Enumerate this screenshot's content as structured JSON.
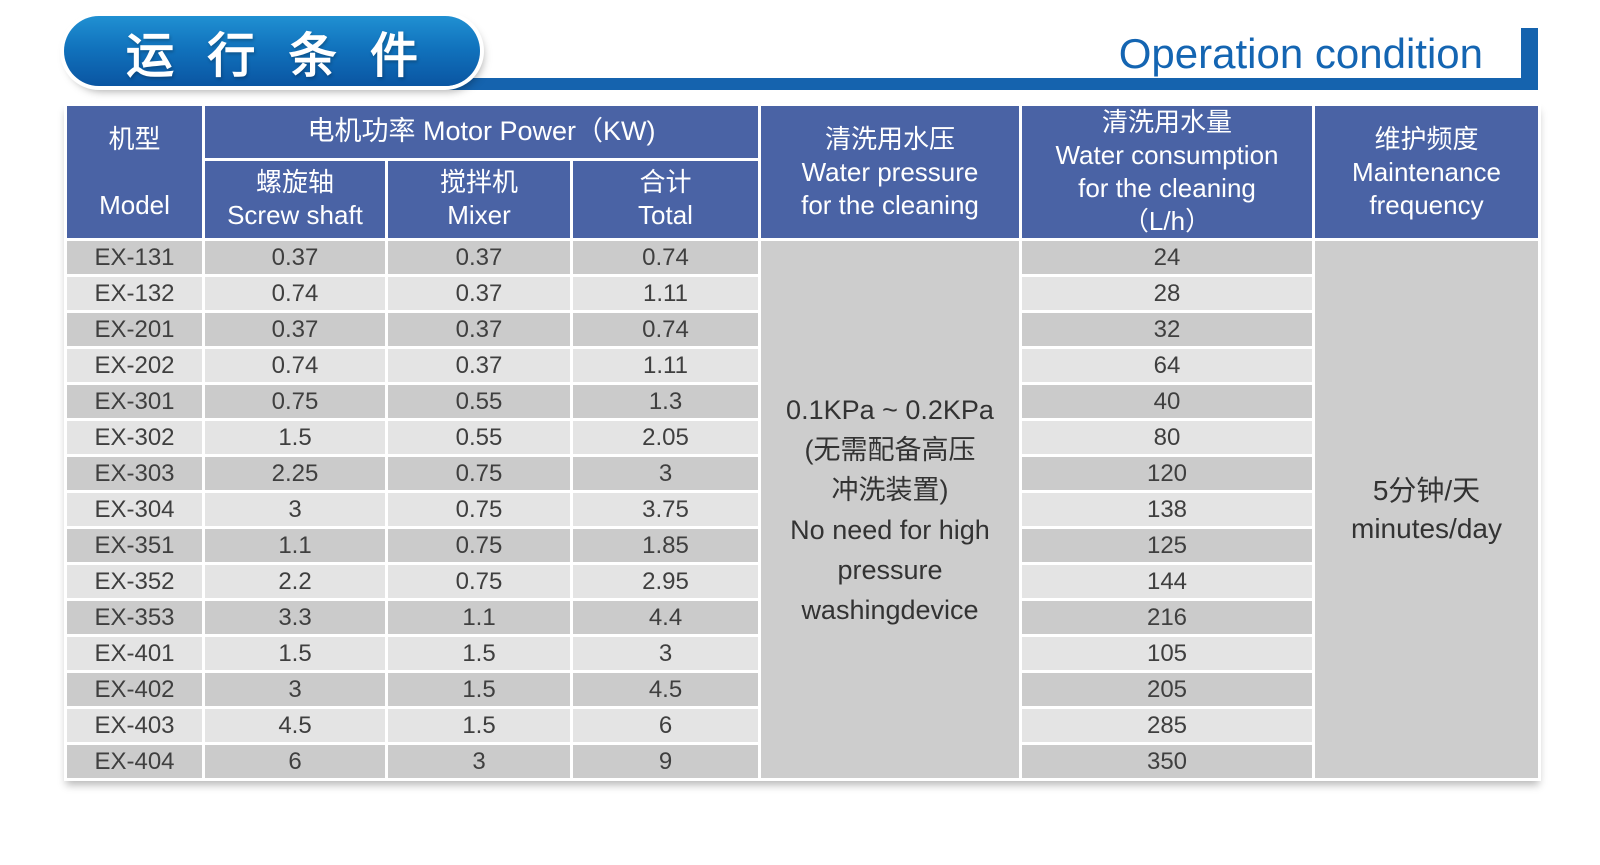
{
  "title": {
    "zh": "运 行 条 件",
    "en": "Operation condition"
  },
  "table": {
    "header": {
      "model": {
        "zh": "机型",
        "en": "Model"
      },
      "motor_power": "电机功率  Motor Power（KW)",
      "screw_shaft": {
        "zh": "螺旋轴",
        "en": "Screw shaft"
      },
      "mixer": {
        "zh": "搅拌机",
        "en": "Mixer"
      },
      "total": {
        "zh": "合计",
        "en": "Total"
      },
      "water_pressure": {
        "lines": [
          "清洗用水压",
          "Water pressure",
          "for the cleaning"
        ]
      },
      "water_consumption": {
        "lines": [
          "清洗用水量",
          "Water consumption",
          "for the cleaning",
          "（L/h）"
        ]
      },
      "maintenance": {
        "lines": [
          "维护频度",
          "Maintenance",
          "frequency"
        ]
      }
    },
    "rows": [
      {
        "model": "EX-131",
        "screw": "0.37",
        "mixer": "0.37",
        "total": "0.74",
        "consumption": "24"
      },
      {
        "model": "EX-132",
        "screw": "0.74",
        "mixer": "0.37",
        "total": "1.11",
        "consumption": "28"
      },
      {
        "model": "EX-201",
        "screw": "0.37",
        "mixer": "0.37",
        "total": "0.74",
        "consumption": "32"
      },
      {
        "model": "EX-202",
        "screw": "0.74",
        "mixer": "0.37",
        "total": "1.11",
        "consumption": "64"
      },
      {
        "model": "EX-301",
        "screw": "0.75",
        "mixer": "0.55",
        "total": "1.3",
        "consumption": "40"
      },
      {
        "model": "EX-302",
        "screw": "1.5",
        "mixer": "0.55",
        "total": "2.05",
        "consumption": "80"
      },
      {
        "model": "EX-303",
        "screw": "2.25",
        "mixer": "0.75",
        "total": "3",
        "consumption": "120"
      },
      {
        "model": "EX-304",
        "screw": "3",
        "mixer": "0.75",
        "total": "3.75",
        "consumption": "138"
      },
      {
        "model": "EX-351",
        "screw": "1.1",
        "mixer": "0.75",
        "total": "1.85",
        "consumption": "125"
      },
      {
        "model": "EX-352",
        "screw": "2.2",
        "mixer": "0.75",
        "total": "2.95",
        "consumption": "144"
      },
      {
        "model": "EX-353",
        "screw": "3.3",
        "mixer": "1.1",
        "total": "4.4",
        "consumption": "216"
      },
      {
        "model": "EX-401",
        "screw": "1.5",
        "mixer": "1.5",
        "total": "3",
        "consumption": "105"
      },
      {
        "model": "EX-402",
        "screw": "3",
        "mixer": "1.5",
        "total": "4.5",
        "consumption": "205"
      },
      {
        "model": "EX-403",
        "screw": "4.5",
        "mixer": "1.5",
        "total": "6",
        "consumption": "285"
      },
      {
        "model": "EX-404",
        "screw": "6",
        "mixer": "3",
        "total": "9",
        "consumption": "350"
      }
    ],
    "water_pressure_cell": {
      "lines": [
        "0.1KPa ~ 0.2KPa",
        "(无需配备高压",
        "冲洗装置)",
        "No need for high",
        "pressure",
        "washingdevice"
      ]
    },
    "maintenance_cell": {
      "lines": [
        "5分钟/天",
        "minutes/day"
      ]
    }
  },
  "colors": {
    "header_blue": "#4a63a5",
    "banner_blue": "#1563ae",
    "pill_from": "#2090d2",
    "pill_mid": "#1173bd",
    "pill_to": "#0a55a2",
    "operation_text": "#1465b2",
    "row_dark": "#cbcbcb",
    "row_light": "#e4e4e4",
    "merged_bg": "#cdcdcd",
    "body_text": "#3f3f3f",
    "header_text": "#ffffff"
  }
}
